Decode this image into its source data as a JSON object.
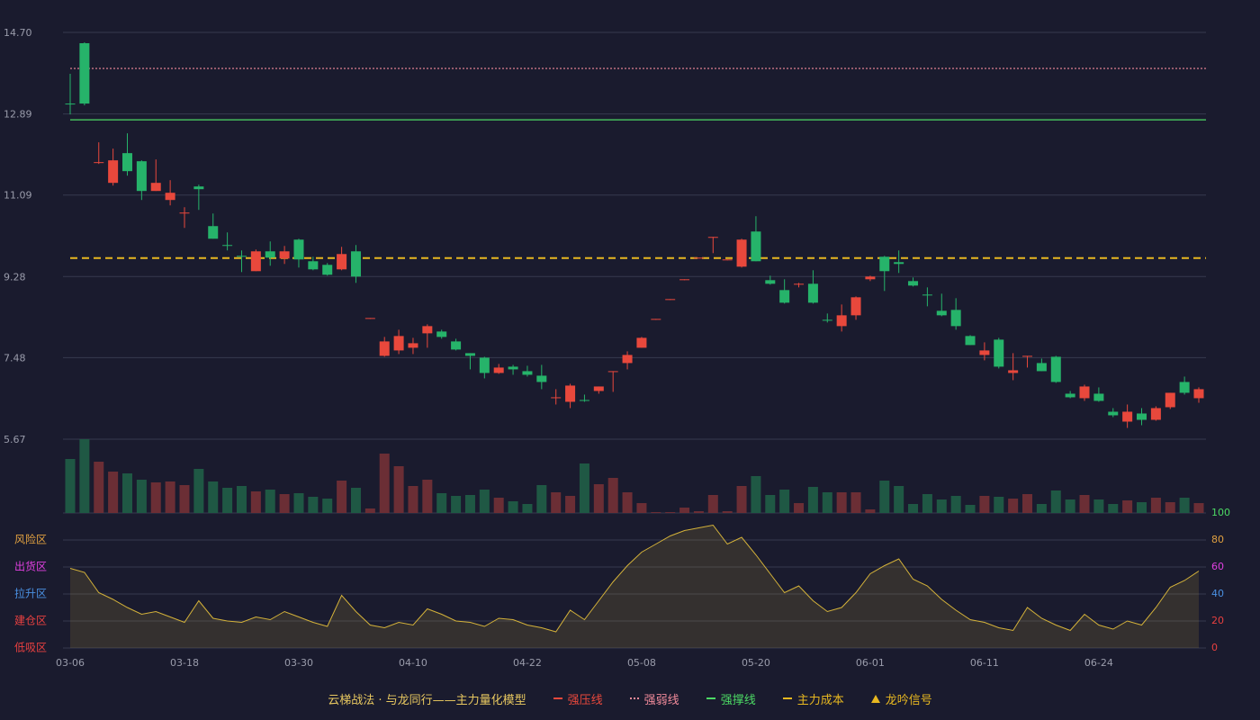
{
  "chart_data": {
    "type": "candlestick",
    "title": "云梯战法 · 与龙同行——主力量化模型",
    "up_color": "#e8483c",
    "down_color": "#26b36a",
    "categories": [
      "03-06",
      null,
      null,
      null,
      null,
      null,
      null,
      null,
      "03-18",
      null,
      null,
      null,
      null,
      null,
      null,
      null,
      "03-30",
      null,
      null,
      null,
      null,
      null,
      null,
      null,
      "04-10",
      null,
      null,
      null,
      null,
      null,
      null,
      null,
      "04-22",
      null,
      null,
      null,
      null,
      null,
      null,
      null,
      "05-08",
      null,
      null,
      null,
      null,
      null,
      null,
      null,
      "05-20",
      null,
      null,
      null,
      null,
      null,
      null,
      null,
      "06-01",
      null,
      null,
      null,
      null,
      null,
      null,
      null,
      "06-11",
      null,
      null,
      null,
      null,
      null,
      null,
      null,
      "06-24",
      null,
      null,
      null,
      null,
      null,
      null,
      null
    ],
    "ohlc": [
      [
        13.12,
        13.78,
        12.88,
        13.1
      ],
      [
        14.46,
        14.48,
        13.08,
        13.12
      ],
      [
        11.8,
        12.26,
        11.78,
        11.82
      ],
      [
        11.36,
        12.12,
        11.3,
        11.86
      ],
      [
        12.02,
        12.46,
        11.52,
        11.62
      ],
      [
        11.84,
        11.86,
        10.98,
        11.18
      ],
      [
        11.18,
        11.88,
        11.18,
        11.36
      ],
      [
        10.98,
        11.42,
        10.86,
        11.14
      ],
      [
        10.68,
        10.82,
        10.36,
        10.7
      ],
      [
        11.28,
        11.32,
        10.76,
        11.22
      ],
      [
        10.4,
        10.68,
        10.12,
        10.12
      ],
      [
        9.98,
        10.26,
        9.86,
        9.96
      ],
      [
        9.74,
        9.86,
        9.38,
        9.72
      ],
      [
        9.4,
        9.88,
        9.4,
        9.84
      ],
      [
        9.84,
        10.06,
        9.52,
        9.7
      ],
      [
        9.68,
        9.96,
        9.56,
        9.84
      ],
      [
        10.1,
        10.12,
        9.48,
        9.66
      ],
      [
        9.62,
        9.72,
        9.42,
        9.44
      ],
      [
        9.54,
        9.58,
        9.3,
        9.32
      ],
      [
        9.44,
        9.94,
        9.42,
        9.78
      ],
      [
        9.84,
        9.98,
        9.14,
        9.28
      ],
      [
        8.34,
        8.36,
        8.34,
        8.36
      ],
      [
        7.52,
        7.94,
        7.5,
        7.84
      ],
      [
        7.64,
        8.1,
        7.56,
        7.96
      ],
      [
        7.7,
        7.92,
        7.56,
        7.8
      ],
      [
        8.02,
        8.22,
        7.7,
        8.18
      ],
      [
        8.06,
        8.1,
        7.9,
        7.94
      ],
      [
        7.84,
        7.9,
        7.64,
        7.66
      ],
      [
        7.58,
        7.58,
        7.22,
        7.52
      ],
      [
        7.48,
        7.5,
        7.02,
        7.14
      ],
      [
        7.14,
        7.34,
        7.12,
        7.26
      ],
      [
        7.28,
        7.32,
        7.1,
        7.22
      ],
      [
        7.18,
        7.3,
        7.06,
        7.1
      ],
      [
        7.08,
        7.32,
        6.78,
        6.94
      ],
      [
        6.58,
        6.78,
        6.44,
        6.6
      ],
      [
        6.5,
        6.9,
        6.36,
        6.86
      ],
      [
        6.54,
        6.66,
        6.5,
        6.52
      ],
      [
        6.74,
        6.84,
        6.68,
        6.84
      ],
      [
        7.16,
        7.18,
        6.72,
        7.18
      ],
      [
        7.36,
        7.62,
        7.22,
        7.54
      ],
      [
        7.7,
        7.94,
        7.7,
        7.92
      ],
      [
        8.32,
        8.34,
        8.32,
        8.34
      ],
      [
        8.76,
        8.78,
        8.76,
        8.78
      ],
      [
        9.2,
        9.22,
        9.2,
        9.22
      ],
      [
        9.68,
        9.7,
        9.68,
        9.7
      ],
      [
        10.14,
        10.16,
        9.8,
        10.16
      ],
      [
        9.64,
        9.66,
        9.64,
        9.66
      ],
      [
        9.5,
        10.12,
        9.48,
        10.1
      ],
      [
        10.28,
        10.62,
        9.62,
        9.62
      ],
      [
        9.2,
        9.3,
        9.1,
        9.12
      ],
      [
        8.98,
        9.22,
        8.68,
        8.7
      ],
      [
        9.1,
        9.14,
        9.04,
        9.12
      ],
      [
        9.12,
        9.42,
        8.68,
        8.7
      ],
      [
        8.32,
        8.46,
        8.26,
        8.3
      ],
      [
        8.18,
        8.66,
        8.06,
        8.42
      ],
      [
        8.42,
        8.84,
        8.32,
        8.82
      ],
      [
        9.22,
        9.3,
        9.18,
        9.28
      ],
      [
        9.72,
        9.74,
        8.96,
        9.4
      ],
      [
        9.6,
        9.86,
        9.36,
        9.56
      ],
      [
        9.18,
        9.26,
        9.06,
        9.08
      ],
      [
        8.88,
        9.04,
        8.62,
        8.86
      ],
      [
        8.52,
        8.9,
        8.4,
        8.42
      ],
      [
        8.54,
        8.8,
        8.1,
        8.18
      ],
      [
        7.96,
        7.98,
        7.76,
        7.76
      ],
      [
        7.54,
        7.82,
        7.42,
        7.64
      ],
      [
        7.88,
        7.92,
        7.24,
        7.28
      ],
      [
        7.14,
        7.58,
        6.98,
        7.2
      ],
      [
        7.5,
        7.52,
        7.26,
        7.52
      ],
      [
        7.36,
        7.46,
        7.18,
        7.18
      ],
      [
        7.5,
        7.52,
        6.92,
        6.94
      ],
      [
        6.68,
        6.74,
        6.58,
        6.6
      ],
      [
        6.58,
        6.88,
        6.52,
        6.84
      ],
      [
        6.68,
        6.82,
        6.5,
        6.52
      ],
      [
        6.28,
        6.36,
        6.16,
        6.2
      ],
      [
        6.06,
        6.44,
        5.92,
        6.28
      ],
      [
        6.24,
        6.36,
        5.98,
        6.1
      ],
      [
        6.1,
        6.4,
        6.08,
        6.36
      ],
      [
        6.38,
        6.7,
        6.34,
        6.7
      ],
      [
        6.94,
        7.06,
        6.66,
        6.7
      ],
      [
        6.58,
        6.82,
        6.48,
        6.78
      ]
    ],
    "volume": [
      60,
      82,
      57,
      46,
      44,
      37,
      34,
      35,
      31,
      49,
      35,
      28,
      30,
      24,
      26,
      21,
      22,
      18,
      16,
      36,
      28,
      5,
      66,
      52,
      30,
      37,
      22,
      19,
      20,
      26,
      17,
      13,
      10,
      31,
      23,
      19,
      55,
      32,
      39,
      23,
      11,
      1,
      1,
      6,
      2,
      20,
      2,
      30,
      41,
      20,
      26,
      11,
      29,
      23,
      23,
      23,
      4,
      36,
      30,
      10,
      21,
      15,
      19,
      9,
      19,
      18,
      16,
      21,
      10,
      25,
      15,
      20,
      15,
      10,
      14,
      12,
      17,
      12,
      17,
      11
    ],
    "ylim": [
      5.67,
      14.7
    ],
    "yticks": [
      {
        "value": 14.7,
        "label": "14.70"
      },
      12.89,
      11.09,
      9.28,
      7.48,
      5.67
    ],
    "grid": true,
    "reference_lines": [
      {
        "name": "强压线",
        "color": "#e8483c",
        "style": "solid"
      },
      {
        "name": "强弱线",
        "color": "#f08a9a",
        "style": "dotted",
        "value": 13.9
      },
      {
        "name": "强撑线",
        "color": "#4cd964",
        "style": "solid",
        "value": 12.76
      },
      {
        "name": "主力成本",
        "color": "#e8b820",
        "style": "dashed",
        "value": 9.69
      }
    ],
    "signal": {
      "name": "龙吟信号",
      "color": "#e8b820"
    },
    "oscillator": {
      "values": [
        59,
        56,
        41,
        36,
        30,
        25,
        27,
        23,
        19,
        35,
        22,
        20,
        19,
        23,
        21,
        27,
        23,
        19,
        16,
        39,
        27,
        17,
        15,
        19,
        17,
        29,
        25,
        20,
        19,
        16,
        22,
        21,
        17,
        15,
        12,
        28,
        21,
        35,
        49,
        61,
        71,
        77,
        83,
        87,
        89,
        91,
        77,
        82,
        69,
        55,
        41,
        46,
        35,
        27,
        30,
        41,
        55,
        61,
        66,
        51,
        46,
        36,
        28,
        21,
        19,
        15,
        13,
        30,
        22,
        17,
        13,
        25,
        17,
        14,
        20,
        17,
        30,
        45,
        50,
        57
      ],
      "color": "#d4b23a",
      "ylim": [
        0,
        100
      ],
      "yticks": [
        0,
        20,
        40,
        60,
        80,
        100
      ],
      "ytick_colors": [
        "#e84040",
        "#e84040",
        "#4a90e2",
        "#e040e0",
        "#e0a040",
        "#4cd964"
      ],
      "zones": [
        {
          "label": "风险区",
          "value": 80,
          "color": "#e0a040"
        },
        {
          "label": "出货区",
          "value": 60,
          "color": "#e040e0"
        },
        {
          "label": "拉升区",
          "value": 40,
          "color": "#4a90e2"
        },
        {
          "label": "建仓区",
          "value": 20,
          "color": "#e84040"
        },
        {
          "label": "低吸区",
          "value": 0,
          "color": "#e84040"
        }
      ]
    }
  }
}
